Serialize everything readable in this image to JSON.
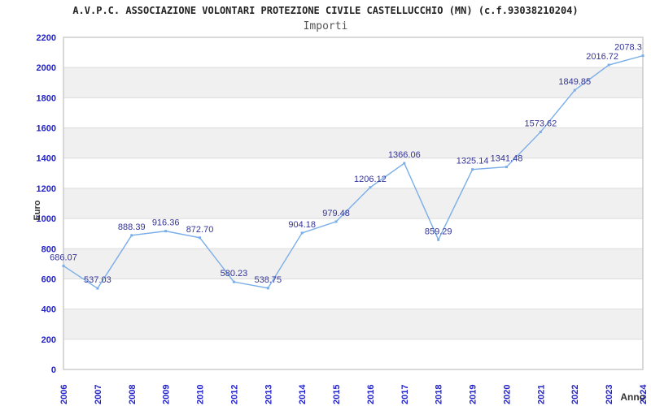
{
  "header": {
    "title": "A.V.P.C. ASSOCIAZIONE VOLONTARI PROTEZIONE CIVILE CASTELLUCCHIO (MN) (c.f.93038210204)",
    "subtitle": "Importi"
  },
  "chart_data": {
    "type": "line",
    "title": "A.V.P.C. ASSOCIAZIONE VOLONTARI PROTEZIONE CIVILE CASTELLUCCHIO (MN) (c.f.93038210204)",
    "subtitle": "Importi",
    "xlabel": "Anno",
    "ylabel": "Euro",
    "categories": [
      "2006",
      "2007",
      "2008",
      "2009",
      "2010",
      "2012",
      "2013",
      "2014",
      "2015",
      "2016",
      "2017",
      "2018",
      "2019",
      "2020",
      "2021",
      "2022",
      "2023",
      "2024"
    ],
    "values": [
      686.07,
      537.03,
      888.39,
      916.36,
      872.7,
      580.23,
      538.75,
      904.18,
      979.48,
      1206.12,
      1366.06,
      859.29,
      1325.14,
      1341.48,
      1573.62,
      1849.85,
      2016.72,
      2078.3
    ],
    "point_labels": [
      "686.07",
      "537.03",
      "888.39",
      "916.36",
      "872.70",
      "580.23",
      "538.75",
      "904.18",
      "979.48",
      "1206.12",
      "1366.06",
      "859.29",
      "1325.14",
      "1341.48",
      "1573.62",
      "1849.85",
      "2016.72",
      "2078.3"
    ],
    "ylim": [
      0,
      2200
    ],
    "ytick_step": 200,
    "grid": true,
    "banded_background": true,
    "legend": "none",
    "colors": {
      "line": "#79AEE8",
      "tick_label": "#2222CC",
      "data_label": "#333399",
      "band": "#F0F0F0",
      "gridline": "#DCDCDC",
      "border": "#C9C9C9",
      "title": "#222222",
      "subtitle": "#555555",
      "axis_title": "#333333"
    }
  }
}
